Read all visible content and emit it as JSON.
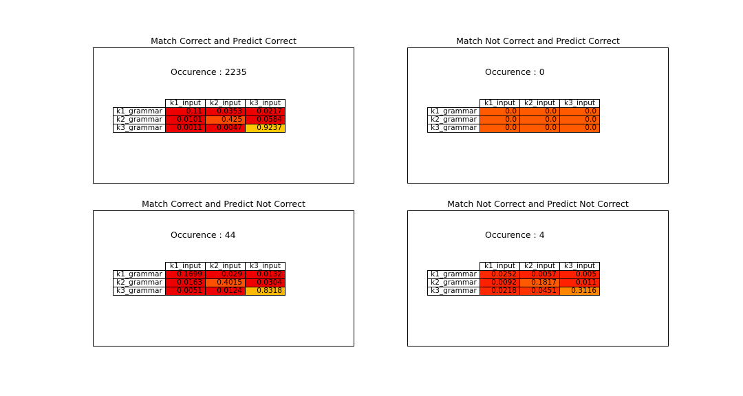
{
  "chart_data": [
    {
      "type": "table",
      "title": "Match Correct and Predict Correct",
      "occurrence_text": "Occurence : 2235",
      "columns": [
        "k1_input",
        "k2_input",
        "k3_input"
      ],
      "rows": [
        "k1_grammar",
        "k2_grammar",
        "k3_grammar"
      ],
      "cell_text": [
        [
          "0.11",
          "0.0353",
          "0.0217"
        ],
        [
          "0.0101",
          "0.425",
          "0.0584"
        ],
        [
          "0.0011",
          "0.0047",
          "0.9237"
        ]
      ],
      "cell_colors": [
        [
          "#ee0000",
          "#ee0000",
          "#ee0000"
        ],
        [
          "#ee0000",
          "#ff4a00",
          "#ee0000"
        ],
        [
          "#ee0000",
          "#ee0000",
          "#ffc800"
        ]
      ]
    },
    {
      "type": "table",
      "title": "Match Not Correct and Predict Correct",
      "occurrence_text": "Occurence : 0",
      "columns": [
        "k1_input",
        "k2_input",
        "k3_input"
      ],
      "rows": [
        "k1_grammar",
        "k2_grammar",
        "k3_grammar"
      ],
      "cell_text": [
        [
          "0.0",
          "0.0",
          "0.0"
        ],
        [
          "0.0",
          "0.0",
          "0.0"
        ],
        [
          "0.0",
          "0.0",
          "0.0"
        ]
      ],
      "cell_colors": [
        [
          "#ff5a00",
          "#ff5a00",
          "#ff5a00"
        ],
        [
          "#ff5a00",
          "#ff5a00",
          "#ff5a00"
        ],
        [
          "#ff5a00",
          "#ff5a00",
          "#ff5a00"
        ]
      ]
    },
    {
      "type": "table",
      "title": "Match Correct and Predict Not Correct",
      "occurrence_text": "Occurence : 44",
      "columns": [
        "k1_input",
        "k2_input",
        "k3_input"
      ],
      "rows": [
        "k1_grammar",
        "k2_grammar",
        "k3_grammar"
      ],
      "cell_text": [
        [
          "0.1699",
          "0.029",
          "0.0132"
        ],
        [
          "0.0163",
          "0.4015",
          "0.0304"
        ],
        [
          "0.0051",
          "0.0124",
          "0.8318"
        ]
      ],
      "cell_colors": [
        [
          "#ee0000",
          "#ee0000",
          "#ee0000"
        ],
        [
          "#ee0000",
          "#ff5000",
          "#ee0000"
        ],
        [
          "#ee0000",
          "#ee0000",
          "#ffb800"
        ]
      ]
    },
    {
      "type": "table",
      "title": "Match Not Correct and Predict Not Correct",
      "occurrence_text": "Occurence : 4",
      "columns": [
        "k1_input",
        "k2_input",
        "k3_input"
      ],
      "rows": [
        "k1_grammar",
        "k2_grammar",
        "k3_grammar"
      ],
      "cell_text": [
        [
          "0.0252",
          "0.0057",
          "0.005"
        ],
        [
          "0.0092",
          "0.1817",
          "0.011"
        ],
        [
          "0.0218",
          "0.0451",
          "0.3116"
        ]
      ],
      "cell_colors": [
        [
          "#ff2800",
          "#ff2000",
          "#ff2000"
        ],
        [
          "#ff2000",
          "#ff5a00",
          "#ff2000"
        ],
        [
          "#ff2800",
          "#ff3200",
          "#ff8600"
        ]
      ]
    }
  ]
}
